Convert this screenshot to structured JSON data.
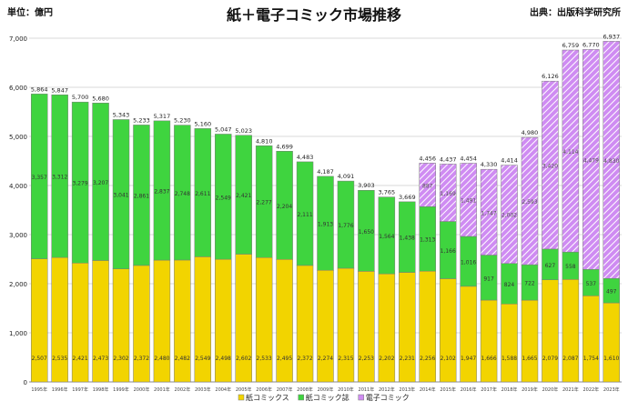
{
  "header": {
    "unit_label": "単位：億円",
    "source_label": "出典：出版科学研究所"
  },
  "colors": {
    "paper_comics": "#f2d400",
    "paper_magazines": "#3fd43f",
    "digital_comics": "#cf8cf2",
    "grid": "#d8d8d8",
    "bar_outline": "#7a7a7a"
  },
  "chart_data": {
    "type": "bar",
    "stacked": true,
    "title": "紙＋電子コミック市場推移",
    "xlabel": "",
    "ylabel": "",
    "ylim": [
      0,
      7000
    ],
    "yticks": [
      0,
      1000,
      2000,
      3000,
      4000,
      5000,
      6000,
      7000
    ],
    "ytick_labels": [
      "0",
      "1,000",
      "2,000",
      "3,000",
      "4,000",
      "5,000",
      "6,000",
      "7,000"
    ],
    "grid": true,
    "legend_position": "bottom",
    "categories": [
      "1995年",
      "1996年",
      "1997年",
      "1998年",
      "1999年",
      "2000年",
      "2001年",
      "2002年",
      "2003年",
      "2004年",
      "2005年",
      "2006年",
      "2007年",
      "2008年",
      "2009年",
      "2010年",
      "2011年",
      "2012年",
      "2013年",
      "2014年",
      "2015年",
      "2016年",
      "2017年",
      "2018年",
      "2019年",
      "2020年",
      "2021年",
      "2022年",
      "2023年"
    ],
    "totals": [
      5864,
      5847,
      5700,
      5680,
      5343,
      5233,
      5317,
      5230,
      5160,
      5047,
      5023,
      4810,
      4699,
      4483,
      4187,
      4091,
      3903,
      3765,
      3669,
      4456,
      4437,
      4454,
      4330,
      4414,
      4980,
      6126,
      6759,
      6770,
      6937
    ],
    "total_labels": [
      "5,864",
      "5,847",
      "5,700",
      "5,680",
      "5,343",
      "5,233",
      "5,317",
      "5,230",
      "5,160",
      "5,047",
      "5,023",
      "4,810",
      "4,699",
      "4,483",
      "4,187",
      "4,091",
      "3,903",
      "3,765",
      "3,669",
      "4,456",
      "4,437",
      "4,454",
      "4,330",
      "4,414",
      "4,980",
      "6,126",
      "6,759",
      "6,770",
      "6,937"
    ],
    "series": [
      {
        "name": "紙コミックス",
        "values": [
          2507,
          2535,
          2421,
          2473,
          2302,
          2372,
          2480,
          2482,
          2549,
          2498,
          2602,
          2533,
          2495,
          2372,
          2274,
          2315,
          2253,
          2202,
          2231,
          2256,
          2102,
          1947,
          1666,
          1588,
          1665,
          2079,
          2087,
          1754,
          1610
        ],
        "labels": [
          "2,507",
          "2,535",
          "2,421",
          "2,473",
          "2,302",
          "2,372",
          "2,480",
          "2,482",
          "2,549",
          "2,498",
          "2,602",
          "2,533",
          "2,495",
          "2,372",
          "2,274",
          "2,315",
          "2,253",
          "2,202",
          "2,231",
          "2,256",
          "2,102",
          "1,947",
          "1,666",
          "1,588",
          "1,665",
          "2,079",
          "2,087",
          "1,754",
          "1,610"
        ]
      },
      {
        "name": "紙コミック誌",
        "values": [
          3357,
          3312,
          3279,
          3207,
          3041,
          2861,
          2837,
          2748,
          2611,
          2549,
          2421,
          2277,
          2204,
          2111,
          1913,
          1776,
          1650,
          1564,
          1438,
          1313,
          1166,
          1016,
          917,
          824,
          722,
          627,
          558,
          537,
          497
        ],
        "labels": [
          "3,357",
          "3,312",
          "3,279",
          "3,207",
          "3,041",
          "2,861",
          "2,837",
          "2,748",
          "2,611",
          "2,549",
          "2,421",
          "2,277",
          "2,204",
          "2,111",
          "1,913",
          "1,776",
          "1,650",
          "1,564",
          "1,438",
          "1,313",
          "1,166",
          "1,016",
          "917",
          "824",
          "722",
          "627",
          "558",
          "537",
          "497"
        ]
      },
      {
        "name": "電子コミック",
        "values": [
          0,
          0,
          0,
          0,
          0,
          0,
          0,
          0,
          0,
          0,
          0,
          0,
          0,
          0,
          0,
          0,
          0,
          0,
          0,
          887,
          1169,
          1491,
          1747,
          2002,
          2593,
          3420,
          4114,
          4479,
          4830
        ],
        "labels": [
          "",
          "",
          "",
          "",
          "",
          "",
          "",
          "",
          "",
          "",
          "",
          "",
          "",
          "",
          "",
          "",
          "",
          "",
          "",
          "887",
          "1,169",
          "1,491",
          "1,747",
          "2,002",
          "2,593",
          "3,420",
          "4,114",
          "4,479",
          "4,830"
        ]
      }
    ]
  }
}
